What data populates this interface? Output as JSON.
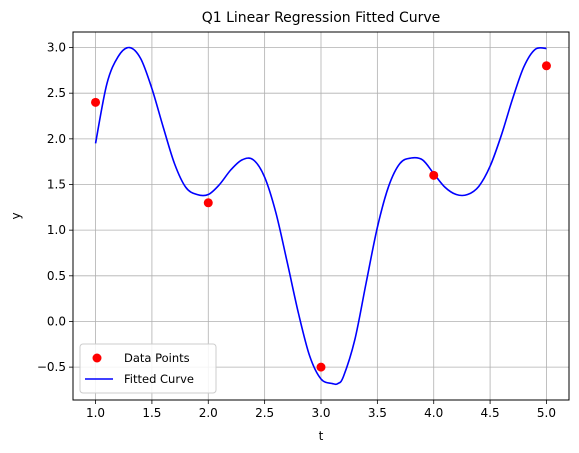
{
  "chart_data": {
    "type": "scatter",
    "title": "Q1 Linear Regression Fitted Curve",
    "xlabel": "t",
    "ylabel": "y",
    "xlim": [
      0.8,
      5.2
    ],
    "ylim": [
      -0.86,
      3.17
    ],
    "xticks": [
      1.0,
      1.5,
      2.0,
      2.5,
      3.0,
      3.5,
      4.0,
      4.5,
      5.0
    ],
    "xtick_labels": [
      "1.0",
      "1.5",
      "2.0",
      "2.5",
      "3.0",
      "3.5",
      "4.0",
      "4.5",
      "5.0"
    ],
    "yticks": [
      -0.5,
      0.0,
      0.5,
      1.0,
      1.5,
      2.0,
      2.5,
      3.0
    ],
    "ytick_labels": [
      "−0.5",
      "0.0",
      "0.5",
      "1.0",
      "1.5",
      "2.0",
      "2.5",
      "3.0"
    ],
    "grid": true,
    "legend_position": "lower-left",
    "series": [
      {
        "name": "Data Points",
        "kind": "scatter",
        "color": "#ff0000",
        "x": [
          1,
          2,
          3,
          4,
          5
        ],
        "y": [
          2.4,
          1.3,
          -0.5,
          1.6,
          2.8
        ]
      },
      {
        "name": "Fitted Curve",
        "kind": "line",
        "color": "#0000ff",
        "x": [
          1.0,
          1.1,
          1.2,
          1.3,
          1.4,
          1.5,
          1.6,
          1.7,
          1.8,
          1.9,
          2.0,
          2.1,
          2.2,
          2.3,
          2.4,
          2.5,
          2.6,
          2.7,
          2.8,
          2.9,
          3.0,
          3.1,
          3.15,
          3.2,
          3.3,
          3.4,
          3.5,
          3.6,
          3.7,
          3.8,
          3.9,
          4.0,
          4.1,
          4.2,
          4.3,
          4.4,
          4.5,
          4.6,
          4.7,
          4.8,
          4.9,
          5.0
        ],
        "y": [
          1.95,
          2.6,
          2.9,
          3.0,
          2.88,
          2.55,
          2.13,
          1.73,
          1.47,
          1.39,
          1.39,
          1.5,
          1.66,
          1.77,
          1.77,
          1.58,
          1.19,
          0.65,
          0.09,
          -0.38,
          -0.63,
          -0.68,
          -0.68,
          -0.6,
          -0.2,
          0.42,
          1.03,
          1.48,
          1.73,
          1.79,
          1.77,
          1.62,
          1.47,
          1.39,
          1.39,
          1.48,
          1.7,
          2.04,
          2.44,
          2.79,
          2.98,
          2.99
        ]
      }
    ]
  }
}
